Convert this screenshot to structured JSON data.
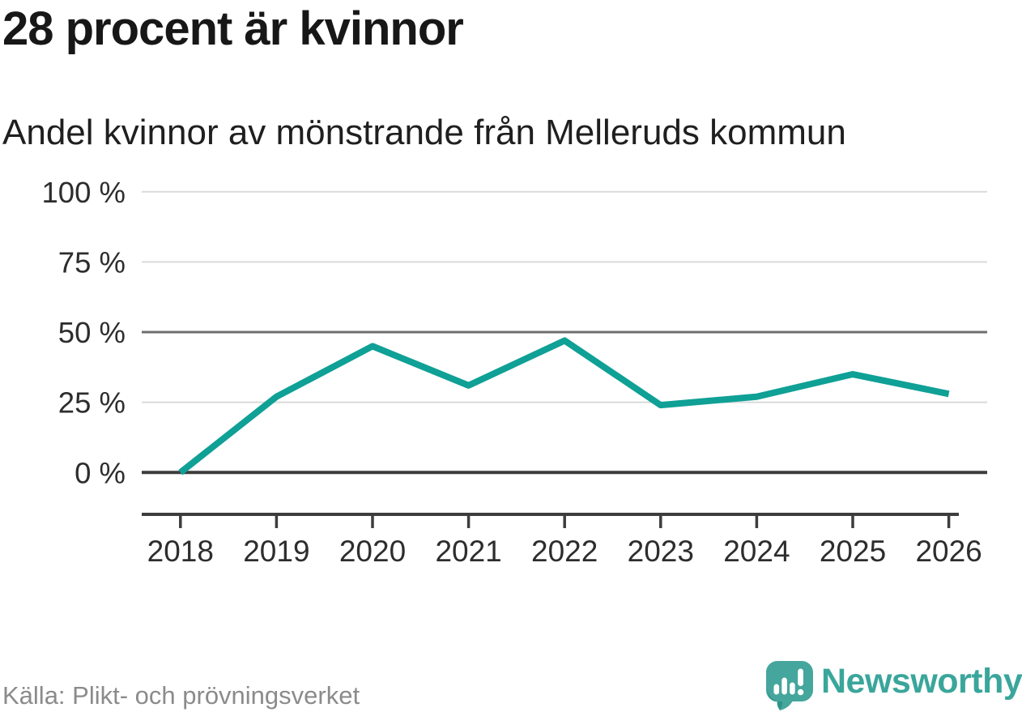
{
  "header": {
    "title": "28 procent är kvinnor",
    "subtitle": "Andel kvinnor av mönstrande från Melleruds kommun"
  },
  "chart_data": {
    "type": "line",
    "title": "28 procent är kvinnor",
    "subtitle": "Andel kvinnor av mönstrande från Melleruds kommun",
    "categories": [
      "2018",
      "2019",
      "2020",
      "2021",
      "2022",
      "2023",
      "2024",
      "2025",
      "2026"
    ],
    "series": [
      {
        "name": "Andel kvinnor av mönstrande",
        "values": [
          0,
          27,
          45,
          31,
          47,
          24,
          27,
          35,
          28
        ]
      }
    ],
    "unit": "%",
    "xlabel": "",
    "ylabel": "",
    "ylim": [
      0,
      100
    ],
    "yticks": [
      {
        "value": 100,
        "label": "100 %",
        "style": "light"
      },
      {
        "value": 75,
        "label": "75 %",
        "style": "light"
      },
      {
        "value": 50,
        "label": "50 %",
        "style": "medium"
      },
      {
        "value": 25,
        "label": "25 %",
        "style": "light"
      },
      {
        "value": 0,
        "label": "0 %",
        "style": "strong"
      }
    ],
    "grid": "horizontal",
    "legend": "none",
    "line_color": "#0fa096",
    "axis_color": "#3d3d3d",
    "grid_light_color": "#dadada",
    "grid_medium_color": "#6e6e6e",
    "tick_label_color": "#2d2d2d"
  },
  "footer": {
    "source": "Källa: Plikt- och prövningsverket"
  },
  "brand": {
    "wordmark": "Newsworthy",
    "logo_icon": "speech-bubble-bar-chart-icon",
    "logo_color": "#45a69d",
    "logo_accent_color": "#2e948b",
    "wordmark_color": "#3aa69b"
  }
}
